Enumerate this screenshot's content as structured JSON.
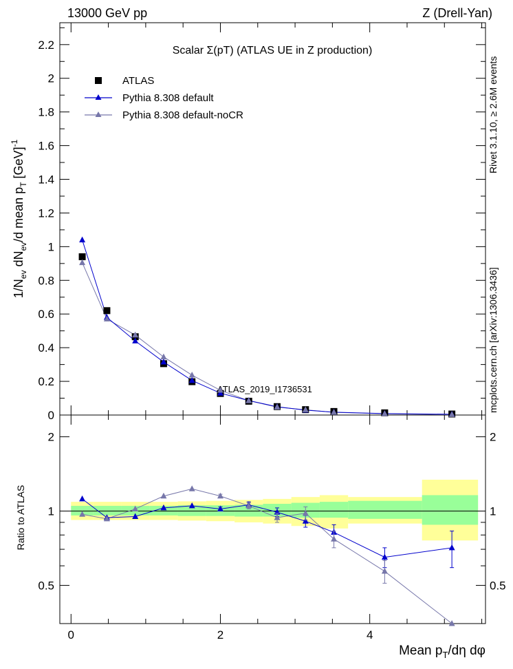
{
  "header": {
    "left": "13000 GeV pp",
    "right": "Z (Drell-Yan)"
  },
  "side_labels": {
    "rivet": "Rivet 3.1.10, ≥ 2.6M events",
    "mcplots": "mcplots.cern.ch [arXiv:1306.3436]"
  },
  "chart_data": {
    "type": "scatter",
    "title": "Scalar Σ(pT) (ATLAS UE in Z production)",
    "watermark": "ATLAS_2019_I1736531",
    "xlabel": "Mean pT/dη dφ",
    "ylabel_main": "1/Nev dNev/d mean pT [GeV]-1",
    "ylabel_ratio": "Ratio to ATLAS",
    "xlim": [
      -0.15,
      5.55
    ],
    "ylim_main": [
      0,
      2.33
    ],
    "ylim_ratio": [
      0.35,
      2.45
    ],
    "ratio_scale": "log",
    "x_ticks": [
      0,
      2,
      4
    ],
    "y_ticks_main": [
      0.2,
      0.4,
      0.6,
      0.8,
      1,
      1.2,
      1.4,
      1.6,
      1.8,
      2,
      2.2
    ],
    "y_ticks_ratio": [
      0.5,
      1,
      2
    ],
    "legend_position": "top-left",
    "colors": {
      "atlas": "#000000",
      "pythia_default": "#0000cc",
      "pythia_nocr": "#7777aa",
      "band_inner": "#99ff99",
      "band_outer": "#ffff99"
    },
    "series": [
      {
        "name": "ATLAS",
        "marker": "square",
        "x": [
          0.15,
          0.48,
          0.86,
          1.24,
          1.62,
          2.0,
          2.38,
          2.76,
          3.14,
          3.52,
          4.2,
          5.1
        ],
        "y": [
          0.94,
          0.62,
          0.465,
          0.305,
          0.198,
          0.128,
          0.082,
          0.05,
          0.032,
          0.021,
          0.013,
          0.006
        ]
      },
      {
        "name": "Pythia 8.308 default",
        "marker": "triangle",
        "x": [
          0.15,
          0.48,
          0.86,
          1.24,
          1.62,
          2.0,
          2.38,
          2.76,
          3.14,
          3.52,
          4.2,
          5.1
        ],
        "y": [
          1.04,
          0.58,
          0.44,
          0.315,
          0.205,
          0.13,
          0.086,
          0.049,
          0.029,
          0.017,
          0.0085,
          0.0045
        ],
        "ratio": [
          1.12,
          0.94,
          0.95,
          1.03,
          1.05,
          1.02,
          1.06,
          0.99,
          0.91,
          0.82,
          0.65,
          0.71
        ],
        "ratio_err": [
          0,
          0,
          0,
          0,
          0,
          0.02,
          0.03,
          0.04,
          0.05,
          0.06,
          0.06,
          0.12
        ]
      },
      {
        "name": "Pythia 8.308 default-noCR",
        "marker": "triangle",
        "x": [
          0.15,
          0.48,
          0.86,
          1.24,
          1.62,
          2.0,
          2.38,
          2.76,
          3.14,
          3.52,
          4.2,
          5.1
        ],
        "y": [
          0.905,
          0.57,
          0.475,
          0.345,
          0.237,
          0.147,
          0.085,
          0.047,
          0.031,
          0.016,
          0.0075,
          0.0025
        ],
        "ratio": [
          0.97,
          0.93,
          1.02,
          1.15,
          1.23,
          1.15,
          1.05,
          0.94,
          0.98,
          0.77,
          0.57,
          0.35
        ],
        "ratio_err": [
          0,
          0,
          0,
          0,
          0,
          0.02,
          0.03,
          0.04,
          0.06,
          0.06,
          0.06,
          0
        ]
      }
    ],
    "uncertainty_bands": [
      {
        "x0": 0.0,
        "x1": 0.3,
        "inner": [
          0.96,
          1.05
        ],
        "outer": [
          0.92,
          1.09
        ]
      },
      {
        "x0": 0.3,
        "x1": 0.67,
        "inner": [
          0.96,
          1.05
        ],
        "outer": [
          0.92,
          1.09
        ]
      },
      {
        "x0": 0.67,
        "x1": 1.05,
        "inner": [
          0.96,
          1.05
        ],
        "outer": [
          0.92,
          1.09
        ]
      },
      {
        "x0": 1.05,
        "x1": 1.43,
        "inner": [
          0.96,
          1.05
        ],
        "outer": [
          0.92,
          1.09
        ]
      },
      {
        "x0": 1.43,
        "x1": 1.81,
        "inner": [
          0.955,
          1.055
        ],
        "outer": [
          0.915,
          1.095
        ]
      },
      {
        "x0": 1.81,
        "x1": 2.19,
        "inner": [
          0.955,
          1.055
        ],
        "outer": [
          0.91,
          1.1
        ]
      },
      {
        "x0": 2.19,
        "x1": 2.57,
        "inner": [
          0.95,
          1.06
        ],
        "outer": [
          0.9,
          1.11
        ]
      },
      {
        "x0": 2.57,
        "x1": 2.95,
        "inner": [
          0.95,
          1.07
        ],
        "outer": [
          0.89,
          1.12
        ]
      },
      {
        "x0": 2.95,
        "x1": 3.33,
        "inner": [
          0.94,
          1.08
        ],
        "outer": [
          0.87,
          1.14
        ]
      },
      {
        "x0": 3.33,
        "x1": 3.71,
        "inner": [
          0.94,
          1.09
        ],
        "outer": [
          0.85,
          1.16
        ]
      },
      {
        "x0": 3.71,
        "x1": 4.7,
        "inner": [
          0.93,
          1.1
        ],
        "outer": [
          0.89,
          1.14
        ]
      },
      {
        "x0": 4.7,
        "x1": 5.45,
        "inner": [
          0.88,
          1.16
        ],
        "outer": [
          0.76,
          1.34
        ]
      }
    ]
  }
}
